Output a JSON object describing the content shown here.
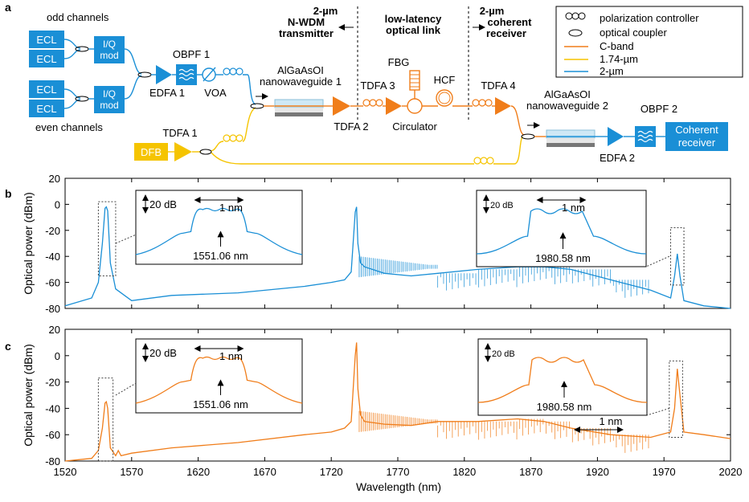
{
  "panel_labels": {
    "a": "a",
    "b": "b",
    "c": "c"
  },
  "diagram": {
    "sections": {
      "transmitter": [
        "2-µm",
        "N-WDM",
        "transmitter"
      ],
      "link": [
        "low-latency",
        "optical link"
      ],
      "receiver": [
        "2-µm",
        "coherent",
        "receiver"
      ]
    },
    "groups": {
      "odd": "odd channels",
      "even": "even channels"
    },
    "blocks": {
      "ecl": "ECL",
      "iq_line1": "I/Q",
      "iq_line2": "mod",
      "dfb": "DFB",
      "coherent_line1": "Coherent",
      "coherent_line2": "receiver"
    },
    "labels": {
      "obpf1": "OBPF 1",
      "edfa1": "EDFA 1",
      "voa": "VOA",
      "tdfa1": "TDFA 1",
      "wg1_line1": "AlGaAsOI",
      "wg1_line2": "nanowaveguide 1",
      "tdfa2": "TDFA 2",
      "tdfa3": "TDFA 3",
      "fbg": "FBG",
      "circulator": "Circulator",
      "hcf": "HCF",
      "tdfa4": "TDFA 4",
      "wg2_line1": "AlGaAsOI",
      "wg2_line2": "nanowaveguide 2",
      "obpf2": "OBPF 2",
      "edfa2": "EDFA 2"
    },
    "legend": {
      "pc": "polarization controller",
      "coupler": "optical coupler",
      "cband": "C-band",
      "l174": "1.74-µm",
      "l2um": "2-µm"
    },
    "colors": {
      "blue": "#1a8fd6",
      "orange": "#f07d1a",
      "yellow": "#f5c400",
      "gray": "#888888"
    }
  },
  "chart_data": [
    {
      "panel": "b",
      "type": "line",
      "series_color": "#1a8fd6",
      "xlabel": "",
      "ylabel": "Optical power (dBm)",
      "xlim": [
        1520,
        2020
      ],
      "ylim": [
        -80,
        20
      ],
      "yticks": [
        "20",
        "0",
        "-20",
        "-40",
        "-60",
        "-80"
      ],
      "x": [
        1520,
        1540,
        1545,
        1548,
        1550,
        1551,
        1552,
        1554,
        1558,
        1570,
        1600,
        1650,
        1700,
        1720,
        1730,
        1735,
        1738,
        1739,
        1740,
        1742,
        1745,
        1760,
        1780,
        1800,
        1830,
        1860,
        1880,
        1900,
        1930,
        1960,
        1975,
        1978,
        1980,
        1982,
        1985,
        2000,
        2020
      ],
      "y": [
        -78,
        -72,
        -60,
        -30,
        -3,
        -2,
        -5,
        -45,
        -65,
        -74,
        -70,
        -68,
        -63,
        -60,
        -58,
        -52,
        -6,
        -2,
        -30,
        -45,
        -48,
        -53,
        -55,
        -53,
        -50,
        -48,
        -48,
        -50,
        -58,
        -66,
        -72,
        -55,
        -38,
        -55,
        -74,
        -78,
        -80
      ],
      "insets": [
        {
          "scale": "20 dB",
          "span": "1 nm",
          "label": "1551.06 nm"
        },
        {
          "scale": "20 dB",
          "span": "1 nm",
          "label": "1980.58 nm"
        }
      ]
    },
    {
      "panel": "c",
      "type": "line",
      "series_color": "#f07d1a",
      "xlabel": "Wavelength (nm)",
      "ylabel": "Optical power (dBm)",
      "xlim": [
        1520,
        2020
      ],
      "ylim": [
        -80,
        20
      ],
      "xticks": [
        "1520",
        "1570",
        "1620",
        "1670",
        "1720",
        "1770",
        "1820",
        "1870",
        "1920",
        "1970",
        "2020"
      ],
      "yticks": [
        "20",
        "0",
        "-20",
        "-40",
        "-60",
        "-80"
      ],
      "x": [
        1520,
        1540,
        1545,
        1548,
        1550,
        1551,
        1552,
        1554,
        1558,
        1560,
        1562,
        1570,
        1600,
        1650,
        1700,
        1720,
        1730,
        1735,
        1738,
        1739,
        1740,
        1742,
        1745,
        1760,
        1780,
        1800,
        1830,
        1860,
        1880,
        1900,
        1930,
        1960,
        1975,
        1978,
        1980,
        1982,
        1985,
        2000,
        2020
      ],
      "y": [
        -80,
        -78,
        -72,
        -55,
        -36,
        -35,
        -40,
        -70,
        -76,
        -72,
        -76,
        -74,
        -70,
        -66,
        -60,
        -58,
        -55,
        -50,
        0,
        10,
        -25,
        -45,
        -50,
        -52,
        -53,
        -50,
        -50,
        -48,
        -50,
        -55,
        -60,
        -62,
        -58,
        -40,
        -10,
        -30,
        -58,
        -60,
        -63
      ],
      "insets": [
        {
          "scale": "20 dB",
          "span": "1 nm",
          "label": "1551.06 nm"
        },
        {
          "scale": "20 dB",
          "span": "1 nm",
          "label": "1980.58 nm"
        }
      ]
    }
  ]
}
